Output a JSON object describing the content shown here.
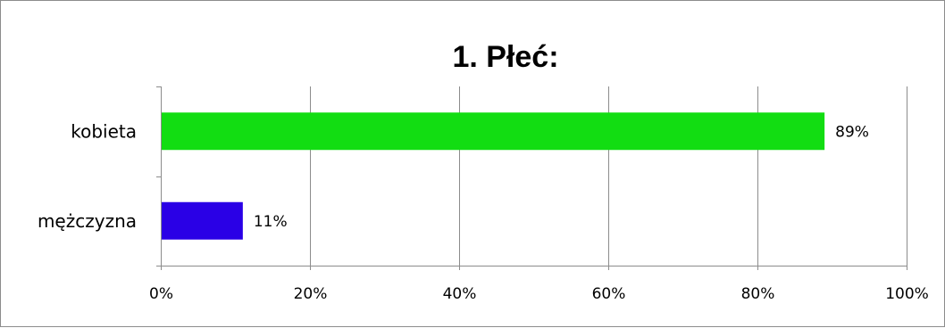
{
  "chart_data": {
    "type": "bar",
    "orientation": "horizontal",
    "title": "1. Płeć:",
    "categories": [
      "kobieta",
      "mężczyzna"
    ],
    "values": [
      89,
      11
    ],
    "value_labels": [
      "89%",
      "11%"
    ],
    "colors": [
      "#12dd12",
      "#2a00e6"
    ],
    "xlim": [
      0,
      100
    ],
    "x_ticks": [
      0,
      20,
      40,
      60,
      80,
      100
    ],
    "x_tick_labels": [
      "0%",
      "20%",
      "40%",
      "60%",
      "80%",
      "100%"
    ],
    "grid": true,
    "legend": "none"
  }
}
